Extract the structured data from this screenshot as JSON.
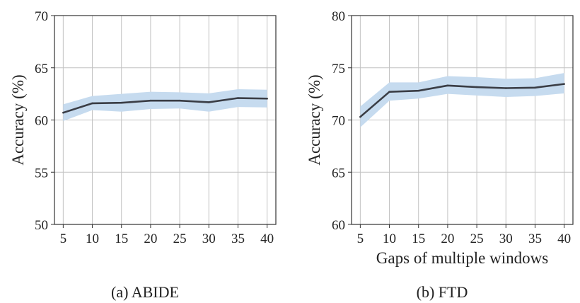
{
  "chart_data": [
    {
      "type": "line",
      "caption": "(a) ABIDE",
      "xlabel": "",
      "ylabel": "Accuracy (%)",
      "x": [
        5,
        10,
        15,
        20,
        25,
        30,
        35,
        40
      ],
      "xlim": [
        3.5,
        41.5
      ],
      "ylim": [
        50,
        70
      ],
      "yticks": [
        50,
        55,
        60,
        65,
        70
      ],
      "grid": true,
      "series": [
        {
          "values": [
            60.7,
            61.6,
            61.65,
            61.85,
            61.85,
            61.7,
            62.1,
            62.05
          ],
          "lower": [
            59.9,
            60.95,
            60.8,
            61.05,
            61.1,
            60.8,
            61.25,
            61.2
          ],
          "upper": [
            61.5,
            62.3,
            62.5,
            62.7,
            62.65,
            62.55,
            62.95,
            62.9
          ]
        }
      ]
    },
    {
      "type": "line",
      "caption": "(b) FTD",
      "xlabel": "Gaps of multiple windows",
      "ylabel": "Accuracy (%)",
      "x": [
        5,
        10,
        15,
        20,
        25,
        30,
        35,
        40
      ],
      "xlim": [
        3.5,
        41.5
      ],
      "ylim": [
        60,
        80
      ],
      "yticks": [
        60,
        65,
        70,
        75,
        80
      ],
      "grid": true,
      "series": [
        {
          "values": [
            70.3,
            72.7,
            72.8,
            73.3,
            73.15,
            73.05,
            73.1,
            73.45
          ],
          "lower": [
            69.3,
            71.85,
            72.05,
            72.5,
            72.35,
            72.2,
            72.3,
            72.55
          ],
          "upper": [
            71.3,
            73.6,
            73.6,
            74.2,
            74.1,
            73.95,
            74.0,
            74.5
          ]
        }
      ]
    }
  ],
  "colors": {
    "line": "#3a3d45",
    "band": "#c6dbef",
    "grid": "#c2c2c2",
    "axis": "#333333"
  }
}
